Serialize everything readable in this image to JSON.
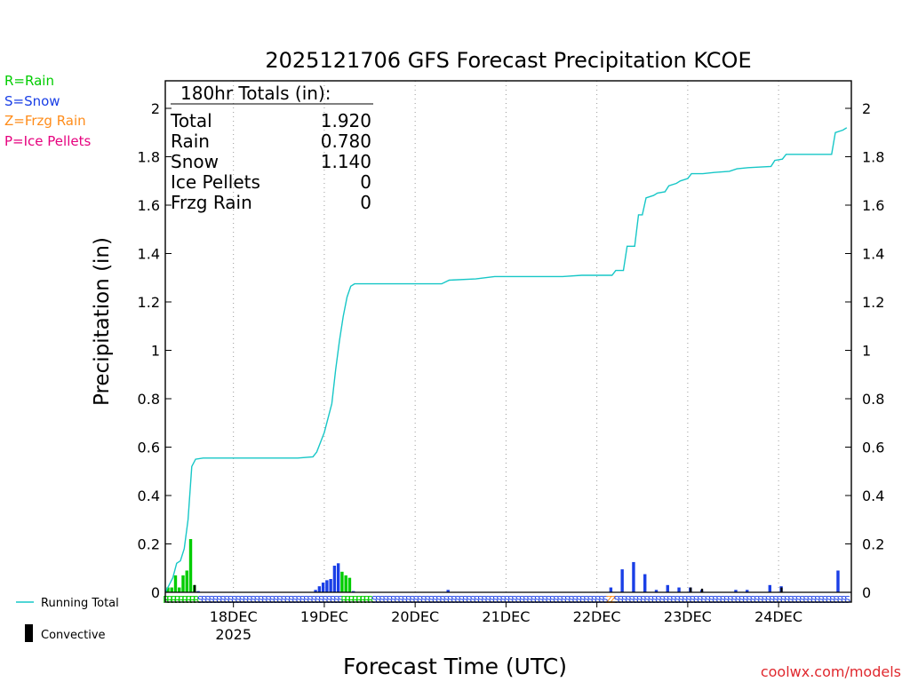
{
  "header": {
    "title": "2025121706 GFS Forecast Precipitation KCOE"
  },
  "legend": {
    "rain": "R=Rain",
    "snow": "S=Snow",
    "frzg": "Z=Frzg Rain",
    "ice": "P=Ice Pellets",
    "running_total": "Running Total",
    "convective": "Convective"
  },
  "colors": {
    "rain": "#00cc00",
    "snow": "#1a3fe6",
    "frzg": "#ff8c1a",
    "ice": "#e6007e",
    "line": "#17c7c7",
    "convective": "#000000"
  },
  "totals": {
    "heading": "180hr Totals (in):",
    "rows": [
      {
        "label": "Total",
        "value": "1.920"
      },
      {
        "label": "Rain",
        "value": "0.780"
      },
      {
        "label": "Snow",
        "value": "1.140"
      },
      {
        "label": "Ice Pellets",
        "value": "0"
      },
      {
        "label": "Frzg Rain",
        "value": "0"
      }
    ]
  },
  "footer": {
    "credit": "coolwx.com/models"
  },
  "chart_data": {
    "type": "bar",
    "title": "2025121706 GFS Forecast Precipitation KCOE",
    "xlabel": "Forecast Time (UTC)",
    "ylabel": "Precipitation (in)",
    "ylim": [
      0,
      2.1
    ],
    "xlim_hours": [
      0,
      180
    ],
    "yticks": [
      "0",
      "0.2",
      "0.4",
      "0.6",
      "0.8",
      "1",
      "1.2",
      "1.4",
      "1.6",
      "1.8",
      "2"
    ],
    "xticks": [
      {
        "hour": 18,
        "label": "18DEC",
        "sub": "2025"
      },
      {
        "hour": 42,
        "label": "19DEC",
        "sub": ""
      },
      {
        "hour": 66,
        "label": "20DEC",
        "sub": ""
      },
      {
        "hour": 90,
        "label": "21DEC",
        "sub": ""
      },
      {
        "hour": 114,
        "label": "22DEC",
        "sub": ""
      },
      {
        "hour": 138,
        "label": "23DEC",
        "sub": ""
      },
      {
        "hour": 162,
        "label": "24DEC",
        "sub": ""
      }
    ],
    "bars": [
      {
        "h": 1,
        "v": 0.02,
        "t": "R"
      },
      {
        "h": 2,
        "v": 0.02,
        "t": "R"
      },
      {
        "h": 3,
        "v": 0.07,
        "t": "R"
      },
      {
        "h": 4,
        "v": 0.02,
        "t": "R"
      },
      {
        "h": 5,
        "v": 0.07,
        "t": "R"
      },
      {
        "h": 6,
        "v": 0.09,
        "t": "R"
      },
      {
        "h": 7,
        "v": 0.22,
        "t": "R"
      },
      {
        "h": 8,
        "v": 0.03,
        "t": "R"
      },
      {
        "h": 9,
        "v": 0.005,
        "t": "S"
      },
      {
        "h": 40,
        "v": 0.01,
        "t": "S"
      },
      {
        "h": 41,
        "v": 0.025,
        "t": "S"
      },
      {
        "h": 42,
        "v": 0.04,
        "t": "S"
      },
      {
        "h": 43,
        "v": 0.05,
        "t": "S"
      },
      {
        "h": 44,
        "v": 0.055,
        "t": "S"
      },
      {
        "h": 45,
        "v": 0.11,
        "t": "S"
      },
      {
        "h": 46,
        "v": 0.12,
        "t": "S"
      },
      {
        "h": 47,
        "v": 0.085,
        "t": "R"
      },
      {
        "h": 48,
        "v": 0.07,
        "t": "R"
      },
      {
        "h": 49,
        "v": 0.06,
        "t": "R"
      },
      {
        "h": 50,
        "v": 0.005,
        "t": "S"
      },
      {
        "h": 75,
        "v": 0.01,
        "t": "S"
      },
      {
        "h": 118,
        "v": 0.02,
        "t": "S"
      },
      {
        "h": 121,
        "v": 0.095,
        "t": "S"
      },
      {
        "h": 124,
        "v": 0.125,
        "t": "S"
      },
      {
        "h": 127,
        "v": 0.075,
        "t": "S"
      },
      {
        "h": 130,
        "v": 0.01,
        "t": "S"
      },
      {
        "h": 133,
        "v": 0.03,
        "t": "S"
      },
      {
        "h": 136,
        "v": 0.02,
        "t": "S"
      },
      {
        "h": 139,
        "v": 0.02,
        "t": "S"
      },
      {
        "h": 142,
        "v": 0.01,
        "t": "S"
      },
      {
        "h": 151,
        "v": 0.01,
        "t": "S"
      },
      {
        "h": 154,
        "v": 0.01,
        "t": "S"
      },
      {
        "h": 160,
        "v": 0.03,
        "t": "S"
      },
      {
        "h": 163,
        "v": 0.025,
        "t": "S"
      },
      {
        "h": 178,
        "v": 0.09,
        "t": "S"
      }
    ],
    "convective": [
      {
        "h": 8,
        "v": 0.03
      },
      {
        "h": 139,
        "v": 0.02
      },
      {
        "h": 142,
        "v": 0.015
      },
      {
        "h": 163,
        "v": 0.02
      }
    ],
    "running_total": [
      [
        0,
        0
      ],
      [
        1,
        0.03
      ],
      [
        2,
        0.06
      ],
      [
        3,
        0.12
      ],
      [
        4,
        0.13
      ],
      [
        5,
        0.18
      ],
      [
        6,
        0.3
      ],
      [
        7,
        0.52
      ],
      [
        8,
        0.55
      ],
      [
        10,
        0.555
      ],
      [
        20,
        0.555
      ],
      [
        35,
        0.555
      ],
      [
        39,
        0.56
      ],
      [
        40,
        0.58
      ],
      [
        42,
        0.66
      ],
      [
        44,
        0.78
      ],
      [
        45,
        0.92
      ],
      [
        46,
        1.04
      ],
      [
        47,
        1.14
      ],
      [
        48,
        1.22
      ],
      [
        49,
        1.265
      ],
      [
        50,
        1.275
      ],
      [
        60,
        1.275
      ],
      [
        73,
        1.275
      ],
      [
        75,
        1.29
      ],
      [
        82,
        1.295
      ],
      [
        87,
        1.305
      ],
      [
        100,
        1.305
      ],
      [
        105,
        1.305
      ],
      [
        110,
        1.31
      ],
      [
        118,
        1.31
      ],
      [
        119,
        1.33
      ],
      [
        121,
        1.33
      ],
      [
        122,
        1.43
      ],
      [
        124,
        1.43
      ],
      [
        125,
        1.56
      ],
      [
        126,
        1.56
      ],
      [
        127,
        1.63
      ],
      [
        129,
        1.64
      ],
      [
        130,
        1.65
      ],
      [
        132,
        1.655
      ],
      [
        133,
        1.68
      ],
      [
        135,
        1.69
      ],
      [
        136,
        1.7
      ],
      [
        138,
        1.71
      ],
      [
        139,
        1.73
      ],
      [
        142,
        1.73
      ],
      [
        145,
        1.735
      ],
      [
        149,
        1.74
      ],
      [
        151,
        1.75
      ],
      [
        154,
        1.755
      ],
      [
        160,
        1.76
      ],
      [
        161,
        1.785
      ],
      [
        163,
        1.79
      ],
      [
        164,
        1.81
      ],
      [
        170,
        1.81
      ],
      [
        176,
        1.81
      ],
      [
        177,
        1.9
      ],
      [
        179,
        1.91
      ],
      [
        180,
        1.92
      ]
    ],
    "ptype_markers": [
      {
        "from": 0,
        "to": 9,
        "t": "R"
      },
      {
        "from": 9,
        "to": 41,
        "t": "S"
      },
      {
        "from": 41,
        "to": 47,
        "t": "S"
      },
      {
        "from": 47,
        "to": 55,
        "t": "R"
      },
      {
        "from": 55,
        "to": 117,
        "t": "S"
      },
      {
        "from": 117,
        "to": 119,
        "t": "Z"
      },
      {
        "from": 119,
        "to": 181,
        "t": "S"
      }
    ]
  }
}
